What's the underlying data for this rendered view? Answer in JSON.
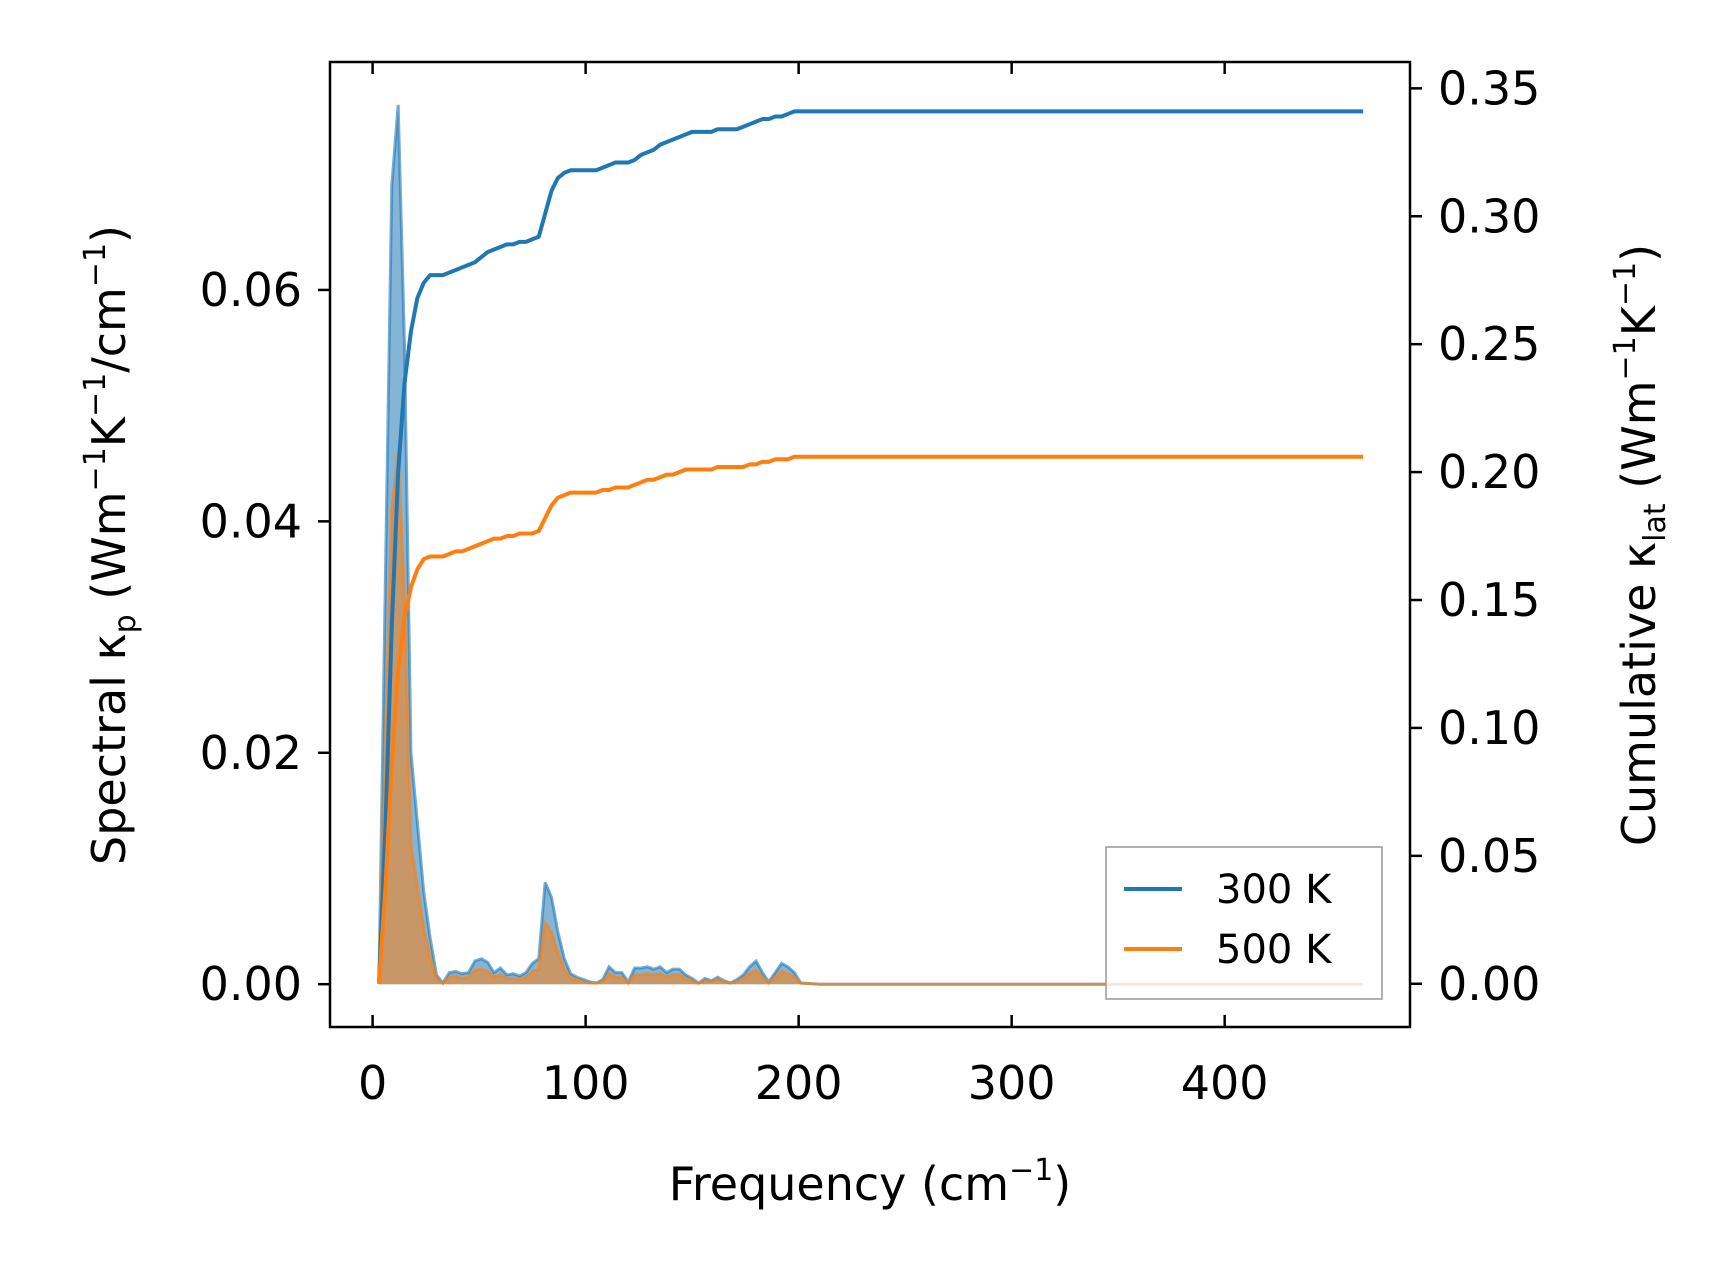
{
  "chart_data": {
    "type": "line",
    "xlabel": "Frequency (cm",
    "xlabel_sup": "−1",
    "xlabel_close": ")",
    "ylabel_left_prefix": "Spectral κ",
    "ylabel_left_sub": "p",
    "ylabel_left_units": " (Wm",
    "ylabel_left_sup1": "−1",
    "ylabel_left_k": "K",
    "ylabel_left_sup2": "−1",
    "ylabel_left_mid": "/cm",
    "ylabel_left_sup3": "−1",
    "ylabel_left_close": ")",
    "ylabel_right_prefix": "Cumulative κ",
    "ylabel_right_sub": "lat",
    "ylabel_right_units": " (Wm",
    "ylabel_right_sup1": "−1",
    "ylabel_right_k": "K",
    "ylabel_right_sup2": "−1",
    "ylabel_right_close": ")",
    "xlim": [
      -20,
      487
    ],
    "ylim_left": [
      -0.0037,
      0.0797
    ],
    "ylim_right": [
      -0.0169,
      0.3603
    ],
    "x_ticks": [
      0,
      100,
      200,
      300,
      400
    ],
    "x_tick_labels": [
      "0",
      "100",
      "200",
      "300",
      "400"
    ],
    "y_left_ticks": [
      0,
      0.02,
      0.04,
      0.06
    ],
    "y_left_tick_labels": [
      "0.00",
      "0.02",
      "0.04",
      "0.06"
    ],
    "y_right_ticks": [
      0,
      0.05,
      0.1,
      0.15,
      0.2,
      0.25,
      0.3,
      0.35
    ],
    "y_right_tick_labels": [
      "0.00",
      "0.05",
      "0.10",
      "0.15",
      "0.20",
      "0.25",
      "0.30",
      "0.35"
    ],
    "legend_position": "lower-right",
    "colors": {
      "300K": "#1f77b4",
      "500K": "#ff7f0e",
      "overlap": "#b9835b"
    },
    "series": [
      {
        "name": "300 K",
        "color": "#1f77b4",
        "spectral": {
          "x": [
            3,
            6,
            9,
            12,
            15,
            18,
            21,
            24,
            27,
            30,
            33,
            36,
            39,
            42,
            45,
            48,
            51,
            54,
            57,
            60,
            63,
            66,
            69,
            72,
            75,
            78,
            81,
            84,
            87,
            90,
            93,
            96,
            99,
            102,
            105,
            108,
            111,
            114,
            117,
            120,
            123,
            126,
            129,
            132,
            135,
            138,
            141,
            144,
            147,
            150,
            153,
            156,
            159,
            162,
            165,
            168,
            171,
            174,
            177,
            180,
            183,
            186,
            189,
            192,
            195,
            198,
            201,
            210,
            250,
            300,
            350,
            400,
            465
          ],
          "y": [
            0.0005,
            0.035,
            0.069,
            0.076,
            0.055,
            0.02,
            0.014,
            0.008,
            0.004,
            0.0008,
            0.0001,
            0.001,
            0.0011,
            0.0009,
            0.001,
            0.002,
            0.0022,
            0.0019,
            0.001,
            0.0014,
            0.0008,
            0.0009,
            0.0007,
            0.001,
            0.0018,
            0.0022,
            0.0088,
            0.0075,
            0.0045,
            0.0022,
            0.0009,
            0.0006,
            0.0004,
            0.0002,
            0.0001,
            0.0004,
            0.0015,
            0.001,
            0.001,
            0.0002,
            0.0014,
            0.0014,
            0.0015,
            0.0013,
            0.0015,
            0.001,
            0.0013,
            0.0013,
            0.0008,
            0.0005,
            0.0001,
            0.0005,
            0.0003,
            0.0006,
            0.0003,
            0.0001,
            0.0004,
            0.0008,
            0.0015,
            0.002,
            0.001,
            0.0002,
            0.001,
            0.0018,
            0.0015,
            0.001,
            0.0001,
            0.0,
            0.0,
            0.0,
            0.0,
            0.0,
            0.0
          ]
        },
        "cumulative": {
          "x": [
            3,
            6,
            9,
            12,
            15,
            18,
            21,
            24,
            27,
            30,
            33,
            36,
            39,
            42,
            45,
            48,
            51,
            54,
            57,
            60,
            63,
            66,
            69,
            72,
            75,
            78,
            81,
            84,
            87,
            90,
            93,
            96,
            99,
            102,
            105,
            108,
            111,
            114,
            117,
            120,
            123,
            126,
            129,
            132,
            135,
            138,
            141,
            144,
            147,
            150,
            153,
            156,
            159,
            162,
            165,
            168,
            171,
            174,
            177,
            180,
            183,
            186,
            189,
            192,
            195,
            198,
            201,
            210,
            250,
            300,
            350,
            400,
            465
          ],
          "y": [
            0.0,
            0.06,
            0.14,
            0.2,
            0.235,
            0.255,
            0.268,
            0.274,
            0.277,
            0.277,
            0.277,
            0.278,
            0.279,
            0.28,
            0.281,
            0.282,
            0.284,
            0.286,
            0.287,
            0.288,
            0.289,
            0.289,
            0.29,
            0.29,
            0.291,
            0.292,
            0.301,
            0.31,
            0.315,
            0.317,
            0.318,
            0.318,
            0.318,
            0.318,
            0.318,
            0.319,
            0.32,
            0.321,
            0.321,
            0.321,
            0.322,
            0.324,
            0.325,
            0.326,
            0.328,
            0.329,
            0.33,
            0.331,
            0.332,
            0.333,
            0.333,
            0.333,
            0.333,
            0.334,
            0.334,
            0.334,
            0.334,
            0.335,
            0.336,
            0.337,
            0.338,
            0.338,
            0.339,
            0.339,
            0.34,
            0.341,
            0.341,
            0.341,
            0.341,
            0.341,
            0.341,
            0.341,
            0.341
          ]
        }
      },
      {
        "name": "500 K",
        "color": "#ff7f0e",
        "spectral": {
          "x": [
            3,
            6,
            9,
            12,
            15,
            18,
            21,
            24,
            27,
            30,
            33,
            36,
            39,
            42,
            45,
            48,
            51,
            54,
            57,
            60,
            63,
            66,
            69,
            72,
            75,
            78,
            81,
            84,
            87,
            90,
            93,
            96,
            99,
            102,
            105,
            108,
            111,
            114,
            117,
            120,
            123,
            126,
            129,
            132,
            135,
            138,
            141,
            144,
            147,
            150,
            153,
            156,
            159,
            162,
            165,
            168,
            171,
            174,
            177,
            180,
            183,
            186,
            189,
            192,
            195,
            198,
            201,
            210,
            250,
            300,
            350,
            400,
            465
          ],
          "y": [
            0.0003,
            0.021,
            0.041,
            0.046,
            0.033,
            0.012,
            0.0085,
            0.0048,
            0.0024,
            0.0005,
            0.0001,
            0.0006,
            0.0007,
            0.0005,
            0.0006,
            0.0012,
            0.0013,
            0.0011,
            0.0006,
            0.0008,
            0.0005,
            0.0005,
            0.0004,
            0.0006,
            0.0011,
            0.0013,
            0.0053,
            0.0045,
            0.0027,
            0.0013,
            0.0005,
            0.0004,
            0.0002,
            0.0001,
            0.0001,
            0.0002,
            0.0009,
            0.0006,
            0.0006,
            0.0001,
            0.0008,
            0.0008,
            0.0009,
            0.0008,
            0.0009,
            0.0006,
            0.0008,
            0.0008,
            0.0005,
            0.0003,
            0.0001,
            0.0003,
            0.0002,
            0.0004,
            0.0002,
            0.0001,
            0.0002,
            0.0005,
            0.0009,
            0.0012,
            0.0006,
            0.0001,
            0.0006,
            0.0011,
            0.0009,
            0.0006,
            0.0001,
            0.0,
            0.0,
            0.0,
            0.0,
            0.0,
            0.0
          ]
        },
        "cumulative": {
          "x": [
            3,
            6,
            9,
            12,
            15,
            18,
            21,
            24,
            27,
            30,
            33,
            36,
            39,
            42,
            45,
            48,
            51,
            54,
            57,
            60,
            63,
            66,
            69,
            72,
            75,
            78,
            81,
            84,
            87,
            90,
            93,
            96,
            99,
            102,
            105,
            108,
            111,
            114,
            117,
            120,
            123,
            126,
            129,
            132,
            135,
            138,
            141,
            144,
            147,
            150,
            153,
            156,
            159,
            162,
            165,
            168,
            171,
            174,
            177,
            180,
            183,
            186,
            189,
            192,
            195,
            198,
            201,
            210,
            250,
            300,
            350,
            400,
            465
          ],
          "y": [
            0.0,
            0.037,
            0.086,
            0.122,
            0.143,
            0.155,
            0.162,
            0.166,
            0.167,
            0.167,
            0.167,
            0.168,
            0.169,
            0.169,
            0.17,
            0.171,
            0.172,
            0.173,
            0.174,
            0.174,
            0.175,
            0.175,
            0.176,
            0.176,
            0.176,
            0.177,
            0.182,
            0.187,
            0.19,
            0.191,
            0.192,
            0.192,
            0.192,
            0.192,
            0.192,
            0.193,
            0.193,
            0.194,
            0.194,
            0.194,
            0.195,
            0.196,
            0.197,
            0.197,
            0.198,
            0.199,
            0.199,
            0.2,
            0.201,
            0.201,
            0.201,
            0.201,
            0.201,
            0.202,
            0.202,
            0.202,
            0.202,
            0.202,
            0.203,
            0.203,
            0.204,
            0.204,
            0.205,
            0.205,
            0.205,
            0.206,
            0.206,
            0.206,
            0.206,
            0.206,
            0.206,
            0.206,
            0.206
          ]
        }
      }
    ]
  }
}
